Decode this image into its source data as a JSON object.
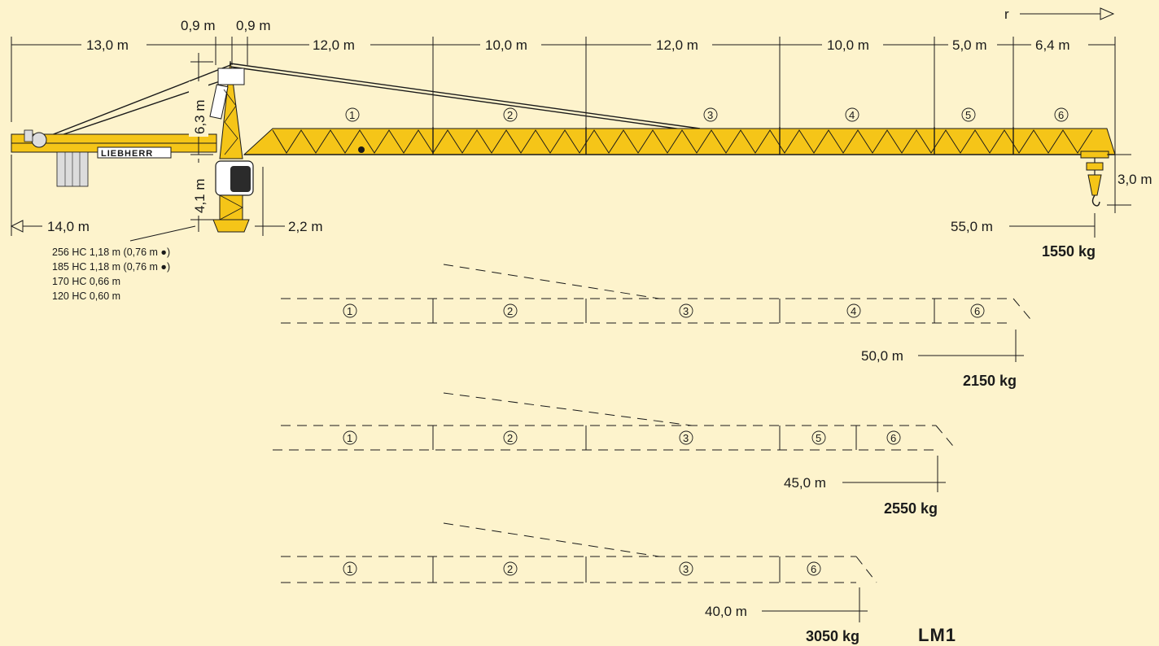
{
  "dimensions": {
    "counterjib": "13,0 m",
    "head_left": "0,9 m",
    "head_right": "0,9 m",
    "top_segments": [
      "12,0 m",
      "10,0 m",
      "12,0 m",
      "10,0 m",
      "5,0 m",
      "6,4 m"
    ],
    "radius_symbol": "r",
    "tower_head_height": "6,3 m",
    "slewing_height": "4,1 m",
    "counterjib_radius": "14,0 m",
    "tower_width": "2,2 m",
    "hook_height": "3,0 m"
  },
  "brand": "LIEBHERR",
  "tower_options": [
    "256 HC 1,18 m (0,76 m ●)",
    "185 HC 1,18 m (0,76 m ●)",
    "170 HC 0,66 m",
    "120 HC 0,60 m"
  ],
  "configurations": [
    {
      "radius": "55,0 m",
      "load": "1550 kg",
      "sections": [
        "1",
        "2",
        "3",
        "4",
        "5",
        "6"
      ]
    },
    {
      "radius": "50,0 m",
      "load": "2150 kg",
      "sections": [
        "1",
        "2",
        "3",
        "4",
        "6"
      ]
    },
    {
      "radius": "45,0 m",
      "load": "2550 kg",
      "sections": [
        "1",
        "2",
        "3",
        "5",
        "6"
      ]
    },
    {
      "radius": "40,0 m",
      "load": "3050 kg",
      "sections": [
        "1",
        "2",
        "3",
        "6"
      ]
    }
  ],
  "model_label": "LM1",
  "colors": {
    "background": "#fdf3cc",
    "jib_yellow": "#f5c518",
    "line": "#1a1a1a"
  }
}
